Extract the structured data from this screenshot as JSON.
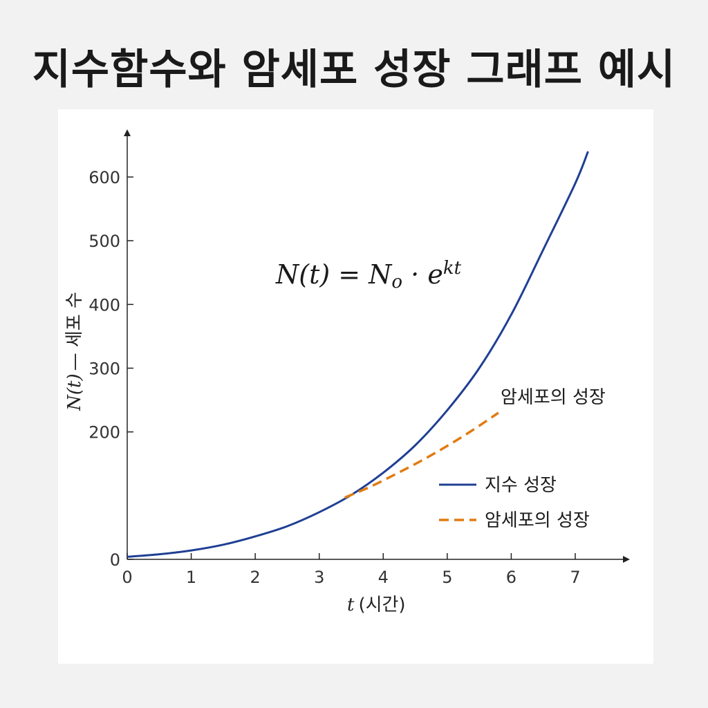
{
  "page": {
    "title": "지수함수와 암세포 성장 그래프 예시"
  },
  "chart_data": {
    "type": "line",
    "title": "지수함수와 암세포 성장 그래프 예시",
    "xlabel_var": "t",
    "xlabel_text": "(시간)",
    "ylabel_var": "N(t)",
    "ylabel_text": "— 세포 수",
    "formula_main": "N(t) = N",
    "formula_sub": "o",
    "formula_mid": " · e",
    "formula_sup": "kt",
    "annotation": "암세포의 성장",
    "xlim": [
      0,
      7.6
    ],
    "ylim": [
      0,
      650
    ],
    "x_ticks": [
      0,
      1,
      2,
      3,
      4,
      5,
      6,
      7
    ],
    "y_ticks": [
      0,
      200,
      300,
      400,
      500,
      600
    ],
    "grid": false,
    "legend_position": "right",
    "colors": {
      "exponential": "#1f3f93",
      "cancer": "#e07b12"
    },
    "series": [
      {
        "name": "지수 성장",
        "style": "solid",
        "x": [
          0,
          0.5,
          1,
          1.5,
          2,
          2.5,
          3,
          3.5,
          4,
          4.5,
          5,
          5.5,
          6,
          6.5,
          7,
          7.2
        ],
        "y": [
          4,
          8,
          14,
          23,
          36,
          52,
          74,
          101,
          136,
          179,
          234,
          300,
          384,
          486,
          590,
          640
        ]
      },
      {
        "name": "암세포의 성장",
        "style": "dashed",
        "x": [
          3.4,
          3.8,
          4.2,
          4.6,
          5.0,
          5.4,
          5.8
        ],
        "y": [
          97,
          114,
          134,
          155,
          178,
          203,
          230
        ]
      }
    ]
  }
}
